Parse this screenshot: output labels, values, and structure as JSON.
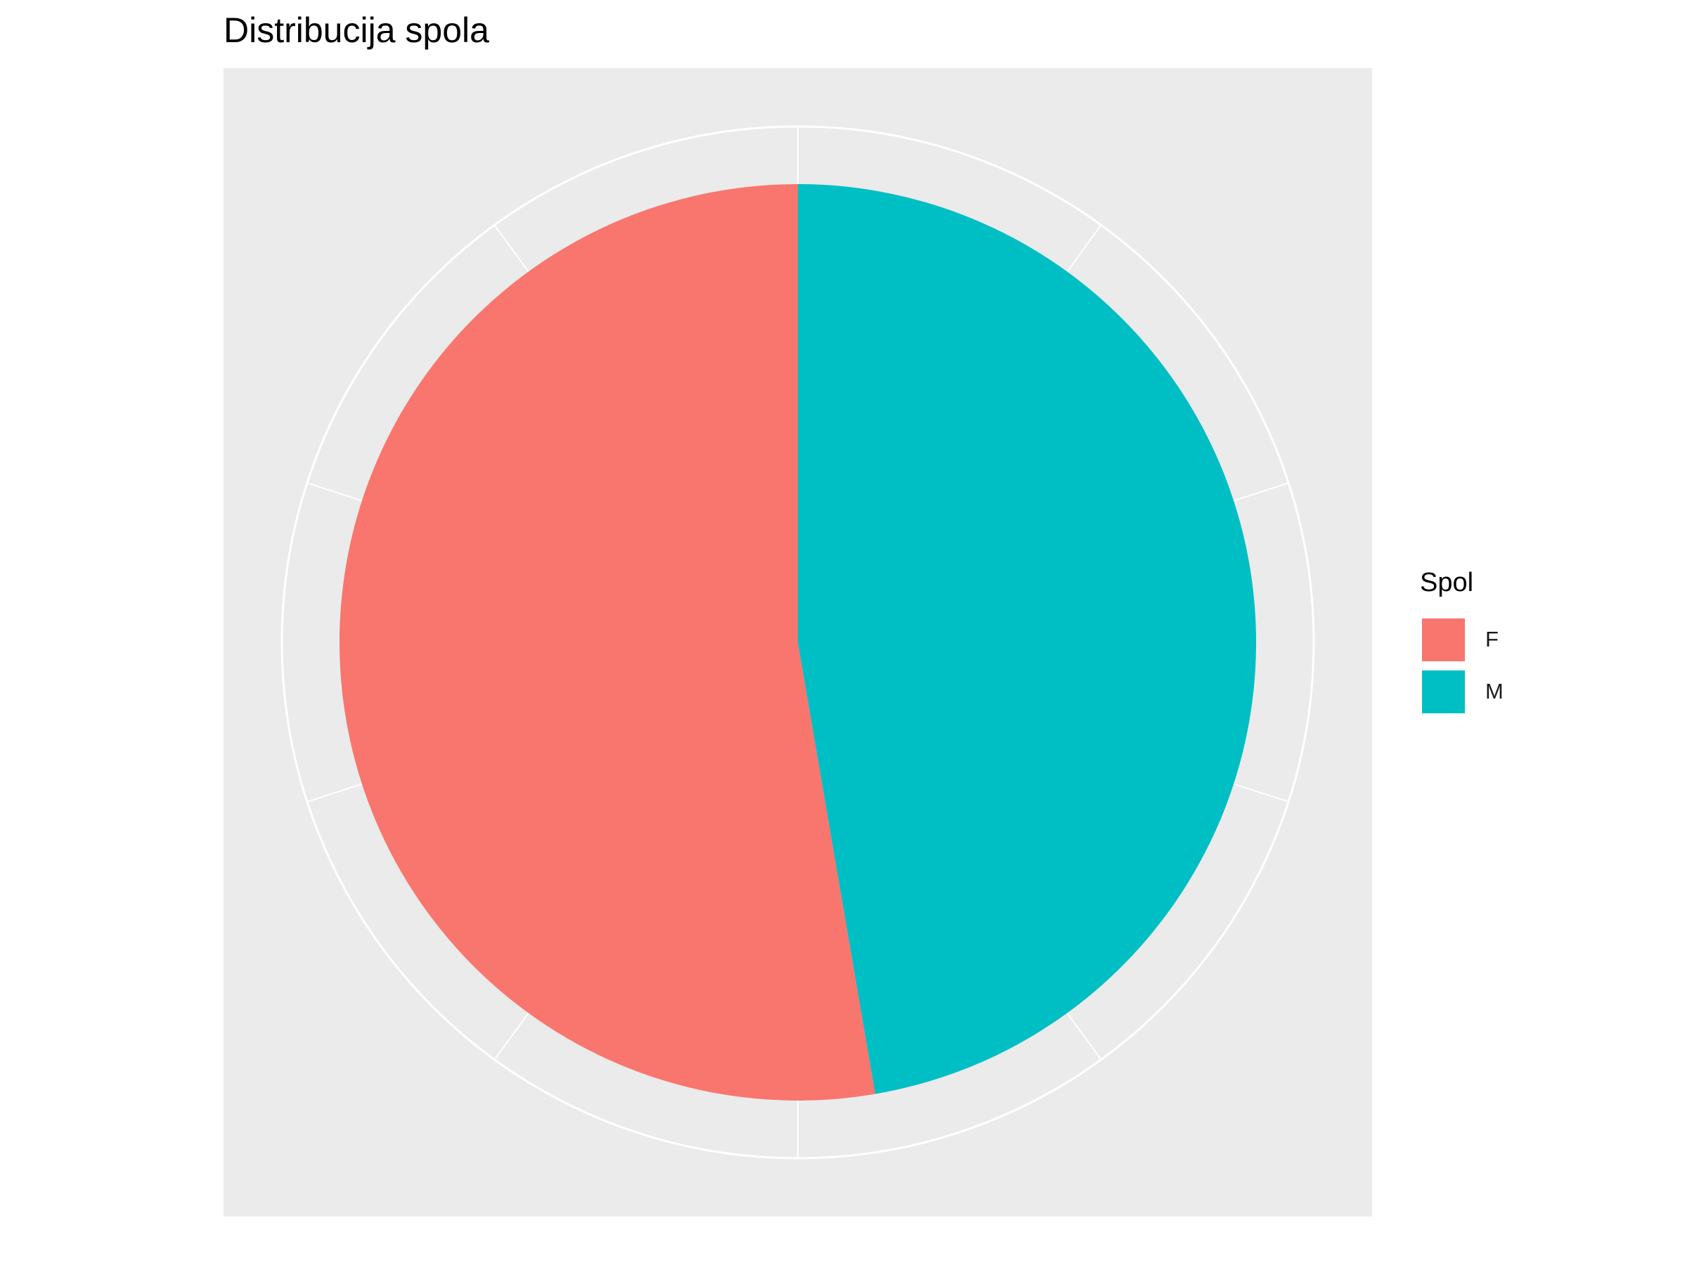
{
  "chart_data": {
    "type": "pie",
    "title": "Distribucija spola",
    "legend_title": "Spol",
    "legend_position": "right",
    "panel_background": "#ebebeb",
    "grid": true,
    "series": [
      {
        "name": "F",
        "value": 0.527,
        "color": "#F8766D"
      },
      {
        "name": "M",
        "value": 0.473,
        "color": "#00BFC4"
      }
    ]
  }
}
